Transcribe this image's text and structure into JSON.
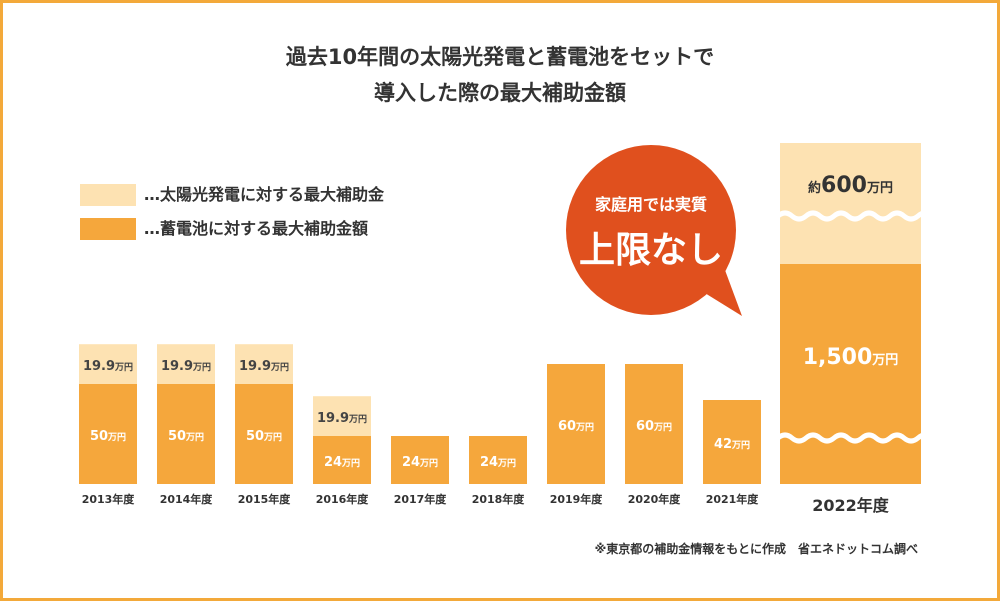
{
  "title_lines": [
    "過去10年間の太陽光発電と蓄電池をセットで",
    "導入した際の最大補助金額"
  ],
  "legend": [
    {
      "label": "…太陽光発電に対する最大補助金",
      "color": "#fde2b2"
    },
    {
      "label": "…蓄電池に対する最大補助金額",
      "color": "#f5a73c"
    }
  ],
  "callout": {
    "line1": "家庭用では実質",
    "line2": "上限なし",
    "color": "#e0501e"
  },
  "note": "※東京都の補助金情報をもとに作成　省エネドットコム調べ",
  "colors": {
    "solar": "#fde2b2",
    "battery": "#f5a73c",
    "border": "#f3a93a",
    "text": "#333333"
  },
  "chart_data": {
    "type": "bar",
    "stacked": true,
    "unit": "万円",
    "categories": [
      "2013年度",
      "2014年度",
      "2015年度",
      "2016年度",
      "2017年度",
      "2018年度",
      "2019年度",
      "2020年度",
      "2021年度",
      "2022年度"
    ],
    "series": [
      {
        "name": "蓄電池に対する最大補助金額",
        "values": [
          50,
          50,
          50,
          24,
          24,
          24,
          60,
          60,
          42,
          1500
        ],
        "labels": [
          "50",
          "50",
          "50",
          "24",
          "24",
          "24",
          "60",
          "60",
          "42",
          "1,500"
        ]
      },
      {
        "name": "太陽光発電に対する最大補助金",
        "values": [
          19.9,
          19.9,
          19.9,
          19.9,
          0,
          0,
          0,
          0,
          0,
          600
        ],
        "labels": [
          "19.9",
          "19.9",
          "19.9",
          "19.9",
          "",
          "",
          "",
          "",
          "",
          "600"
        ],
        "label_prefix": [
          "",
          "",
          "",
          "",
          "",
          "",
          "",
          "",
          "",
          "約"
        ]
      }
    ],
    "last_bar_axis_break": true
  }
}
